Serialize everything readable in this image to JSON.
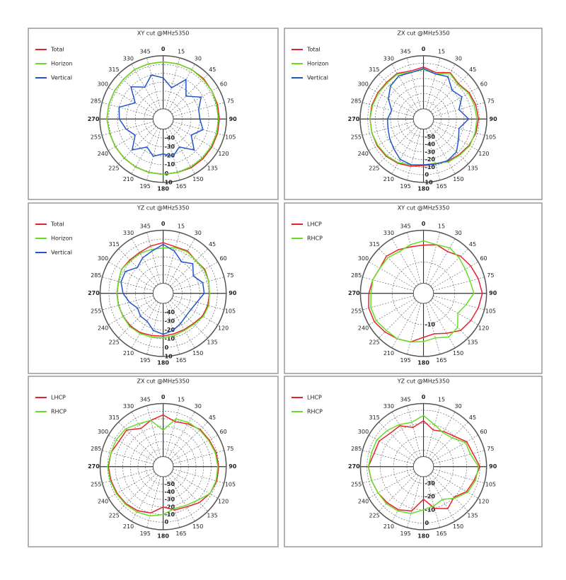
{
  "chart_data": [
    {
      "type": "polar",
      "title": "XY cut @MHz5350",
      "categories": [
        "0",
        "15",
        "30",
        "45",
        "60",
        "75",
        "90",
        "105",
        "120",
        "135",
        "150",
        "165",
        "180",
        "195",
        "210",
        "225",
        "240",
        "255",
        "270",
        "285",
        "300",
        "315",
        "330",
        "345"
      ],
      "rlim": [
        -50,
        10
      ],
      "rticks": [
        -40,
        -30,
        -20,
        -10,
        0,
        10
      ],
      "series": [
        {
          "name": "Total",
          "color": "#e8202a",
          "values": [
            3,
            3,
            3,
            3,
            2,
            2,
            2,
            2,
            2,
            2,
            2,
            1,
            1,
            1,
            1,
            1,
            1,
            1,
            2,
            2,
            2,
            2,
            3,
            3
          ]
        },
        {
          "name": "Horizon",
          "color": "#66dd22",
          "values": [
            3,
            3,
            3,
            2,
            2,
            1,
            1,
            1,
            1,
            1,
            1,
            1,
            1,
            1,
            1,
            1,
            1,
            1,
            2,
            2,
            2,
            2,
            3,
            3
          ]
        },
        {
          "name": "Vertical",
          "color": "#2255cc",
          "values": [
            -15,
            -25,
            -10,
            -25,
            -12,
            -20,
            -20,
            -15,
            -25,
            -12,
            -25,
            -18,
            -22,
            -18,
            -25,
            -12,
            -25,
            -18,
            -12,
            -10,
            -25,
            -10,
            -20,
            -10
          ]
        }
      ]
    },
    {
      "type": "polar",
      "title": "ZX cut @MHz5350",
      "categories": [
        "0",
        "15",
        "30",
        "45",
        "60",
        "75",
        "90",
        "105",
        "120",
        "135",
        "150",
        "165",
        "180",
        "195",
        "210",
        "225",
        "240",
        "255",
        "270",
        "285",
        "300",
        "315",
        "330",
        "345"
      ],
      "rlim": [
        -60,
        10
      ],
      "rticks": [
        -50,
        -40,
        -30,
        -20,
        -10,
        0,
        10
      ],
      "series": [
        {
          "name": "Total",
          "color": "#e8202a",
          "values": [
            -5,
            -10,
            -3,
            -8,
            -4,
            -2,
            -1,
            -2,
            -4,
            -7,
            -9,
            -12,
            -12,
            -9,
            -6,
            -4,
            -3,
            -3,
            -3,
            -3,
            -4,
            -5,
            -4,
            -8
          ]
        },
        {
          "name": "Horizon",
          "color": "#66dd22",
          "values": [
            -8,
            -12,
            -4,
            -9,
            -5,
            -4,
            -3,
            -3,
            -3,
            -6,
            -8,
            -13,
            -13,
            -11,
            -7,
            -5,
            -4,
            -3,
            -3,
            -4,
            -5,
            -6,
            -5,
            -10
          ]
        },
        {
          "name": "Vertical",
          "color": "#2255cc",
          "values": [
            -7,
            -12,
            -9,
            -20,
            -15,
            -25,
            -14,
            -25,
            -20,
            -12,
            -10,
            -12,
            -13,
            -11,
            -12,
            -18,
            -22,
            -25,
            -26,
            -30,
            -20,
            -12,
            -8,
            -10
          ]
        }
      ]
    },
    {
      "type": "polar",
      "title": "YZ cut @MHz5350",
      "categories": [
        "0",
        "15",
        "30",
        "45",
        "60",
        "75",
        "90",
        "105",
        "120",
        "135",
        "150",
        "165",
        "180",
        "195",
        "210",
        "225",
        "240",
        "255",
        "270",
        "285",
        "300",
        "315",
        "330",
        "345"
      ],
      "rlim": [
        -50,
        10
      ],
      "rticks": [
        -40,
        -30,
        -20,
        -10,
        0,
        10
      ],
      "series": [
        {
          "name": "Total",
          "color": "#e8202a",
          "values": [
            -4,
            -7,
            -6,
            -9,
            -7,
            -8,
            -9,
            -9,
            -10,
            -13,
            -14,
            -14,
            -13,
            -12,
            -10,
            -9,
            -9,
            -9,
            -9,
            -9,
            -7,
            -8,
            -8,
            -6
          ]
        },
        {
          "name": "Horizon",
          "color": "#66dd22",
          "values": [
            -10,
            -8,
            -7,
            -9,
            -8,
            -8,
            -9,
            -8,
            -9,
            -12,
            -13,
            -12,
            -11,
            -10,
            -9,
            -8,
            -9,
            -9,
            -9,
            -9,
            -7,
            -9,
            -9,
            -10
          ]
        },
        {
          "name": "Vertical",
          "color": "#2255cc",
          "values": [
            -6,
            -12,
            -20,
            -14,
            -22,
            -15,
            -15,
            -22,
            -25,
            -25,
            -22,
            -18,
            -15,
            -18,
            -25,
            -25,
            -28,
            -22,
            -16,
            -12,
            -12,
            -20,
            -15,
            -12
          ]
        }
      ]
    },
    {
      "type": "polar",
      "title": "XY cut @MHz5350",
      "categories": [
        "0",
        "15",
        "30",
        "45",
        "60",
        "75",
        "90",
        "105",
        "120",
        "135",
        "150",
        "165",
        "180",
        "195",
        "210",
        "225",
        "240",
        "255",
        "270",
        "285",
        "300",
        "315",
        "330",
        "345"
      ],
      "rlim": [
        -20,
        5
      ],
      "rticks": [
        -10
      ],
      "series": [
        {
          "name": "LHCP",
          "color": "#e8202a",
          "values": [
            -2,
            -1,
            -2,
            0,
            1,
            2,
            3,
            2,
            1,
            0,
            -3,
            -5,
            -4,
            -1,
            0,
            1,
            2,
            2,
            1,
            0,
            -1,
            0,
            -1,
            -2
          ]
        },
        {
          "name": "RHCP",
          "color": "#66dd22",
          "values": [
            0,
            -1,
            0,
            -1,
            -2,
            -2,
            -1,
            -4,
            -6,
            -2,
            -1,
            -3,
            -2,
            -1,
            0,
            0,
            1,
            1,
            0,
            0,
            -1,
            -1,
            -2,
            -1
          ]
        }
      ]
    },
    {
      "type": "polar",
      "title": "ZX cut @MHz5350",
      "categories": [
        "0",
        "15",
        "30",
        "45",
        "60",
        "75",
        "90",
        "105",
        "120",
        "135",
        "150",
        "165",
        "180",
        "195",
        "210",
        "225",
        "240",
        "255",
        "270",
        "285",
        "300",
        "315",
        "330",
        "345"
      ],
      "rlim": [
        -60,
        10
      ],
      "rticks": [
        -50,
        -40,
        -30,
        -20,
        -10,
        0
      ],
      "series": [
        {
          "name": "LHCP",
          "color": "#e8202a",
          "values": [
            -5,
            -12,
            -8,
            -4,
            -3,
            -1,
            0,
            0,
            -2,
            -6,
            -12,
            -14,
            -20,
            -10,
            -6,
            -4,
            -3,
            -2,
            -1,
            -2,
            -6,
            -5,
            -15,
            -10
          ]
        },
        {
          "name": "RHCP",
          "color": "#66dd22",
          "values": [
            -25,
            -8,
            -6,
            -5,
            -4,
            -2,
            -1,
            -1,
            -2,
            -10,
            -14,
            -16,
            -10,
            -6,
            -4,
            -3,
            -2,
            -1,
            0,
            -2,
            -2,
            -3,
            -8,
            -10
          ]
        }
      ]
    },
    {
      "type": "polar",
      "title": "YZ cut @MHz5350",
      "categories": [
        "0",
        "15",
        "30",
        "45",
        "60",
        "75",
        "90",
        "105",
        "120",
        "135",
        "150",
        "165",
        "180",
        "195",
        "210",
        "225",
        "240",
        "255",
        "270",
        "285",
        "300",
        "315",
        "330",
        "345"
      ],
      "rlim": [
        -35,
        5
      ],
      "rticks": [
        -30,
        -20,
        -10,
        0
      ],
      "series": [
        {
          "name": "LHCP",
          "color": "#e8202a",
          "values": [
            -8,
            -14,
            -12,
            -10,
            -5,
            -4,
            0,
            -3,
            -5,
            -10,
            -6,
            -10,
            -18,
            -8,
            -5,
            -4,
            -3,
            -2,
            -1,
            -4,
            -4,
            -7,
            -7,
            -12
          ]
        },
        {
          "name": "RHCP",
          "color": "#66dd22",
          "values": [
            -4,
            -10,
            -13,
            -12,
            -6,
            -6,
            -1,
            -2,
            -4,
            -9,
            -14,
            -12,
            -10,
            -6,
            -4,
            -3,
            -3,
            -2,
            -1,
            -2,
            -2,
            -4,
            -6,
            -8
          ]
        }
      ]
    }
  ]
}
